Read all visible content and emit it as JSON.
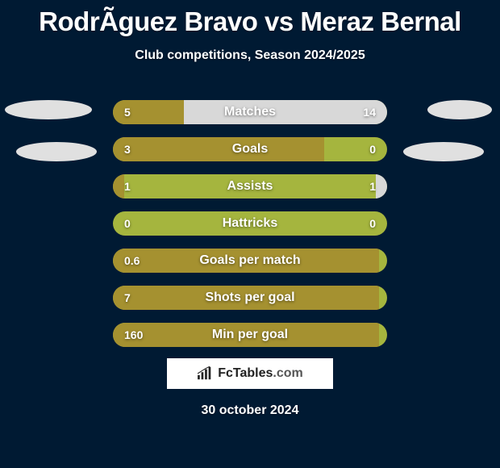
{
  "title": "RodrÃ­guez Bravo vs Meraz Bernal",
  "subtitle": "Club competitions, Season 2024/2025",
  "colors": {
    "background": "#001a33",
    "bar_track": "#a5b53e",
    "left_fill": "#a59130",
    "right_fill": "#d8d8d8",
    "text": "#ffffff"
  },
  "bars": [
    {
      "label": "Matches",
      "left": "5",
      "right": "14",
      "left_pct": 26,
      "right_pct": 74
    },
    {
      "label": "Goals",
      "left": "3",
      "right": "0",
      "left_pct": 77,
      "right_pct": 0
    },
    {
      "label": "Assists",
      "left": "1",
      "right": "1",
      "left_pct": 4,
      "right_pct": 4
    },
    {
      "label": "Hattricks",
      "left": "0",
      "right": "0",
      "left_pct": 0,
      "right_pct": 0
    },
    {
      "label": "Goals per match",
      "left": "0.6",
      "right": "",
      "left_pct": 97,
      "right_pct": 0
    },
    {
      "label": "Shots per goal",
      "left": "7",
      "right": "",
      "left_pct": 97,
      "right_pct": 0
    },
    {
      "label": "Min per goal",
      "left": "160",
      "right": "",
      "left_pct": 97,
      "right_pct": 0
    }
  ],
  "brand": "FcTables",
  "brand_suffix": ".com",
  "date": "30 october 2024"
}
